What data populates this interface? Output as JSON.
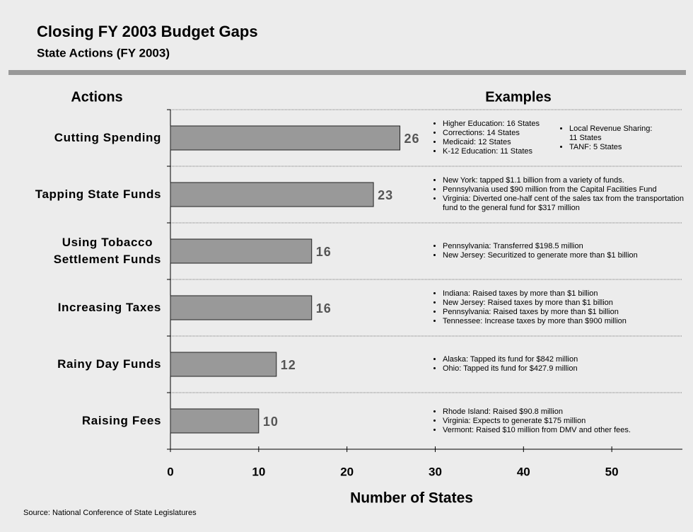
{
  "chart_data": {
    "type": "bar",
    "orientation": "horizontal",
    "title": "Closing FY 2003 Budget Gaps",
    "subtitle": "State Actions (FY 2003)",
    "left_header": "Actions",
    "right_header": "Examples",
    "xlabel": "Number of States",
    "source": "Source: National Conference of State Legislatures",
    "categories": [
      "Cutting Spending",
      "Tapping State Funds",
      "Using Tobacco\nSettlement Funds",
      "Increasing Taxes",
      "Rainy Day Funds",
      "Raising Fees"
    ],
    "values": [
      26,
      23,
      16,
      16,
      12,
      10
    ],
    "color": "#999999",
    "xlim": [
      0,
      58
    ],
    "xticks": [
      0,
      10,
      20,
      30,
      40,
      50
    ],
    "examples": [
      [
        [
          "Higher Education: 16 States",
          "Corrections: 14 States",
          "Medicaid: 12 States",
          "K-12 Education: 11 States"
        ],
        [
          "Local Revenue Sharing:\n11 States",
          "TANF: 5 States"
        ]
      ],
      [
        [
          "New York: tapped $1.1 billion from a variety of funds.",
          "Pennsylvania used $90 million from the Capital Facilities Fund",
          "Virginia: Diverted one-half cent of the sales tax from the transportation fund to the general fund for $317 million"
        ]
      ],
      [
        [
          "Pennsylvania: Transferred $198.5 million",
          "New Jersey: Securitized to generate more than $1 billion"
        ]
      ],
      [
        [
          "Indiana: Raised taxes by more than $1 billion",
          "New Jersey: Raised taxes by more than $1 billion",
          "Pennsylvania: Raised taxes by more than $1 billion",
          "Tennessee: Increase taxes by more than $900 million"
        ]
      ],
      [
        [
          "Alaska: Tapped its fund for $842 million",
          "Ohio: Tapped its fund for $427.9 million"
        ]
      ],
      [
        [
          "Rhode Island: Raised $90.8 million",
          "Virginia: Expects to generate $175 million",
          "Vermont: Raised $10 million from DMV and other fees."
        ]
      ]
    ]
  }
}
